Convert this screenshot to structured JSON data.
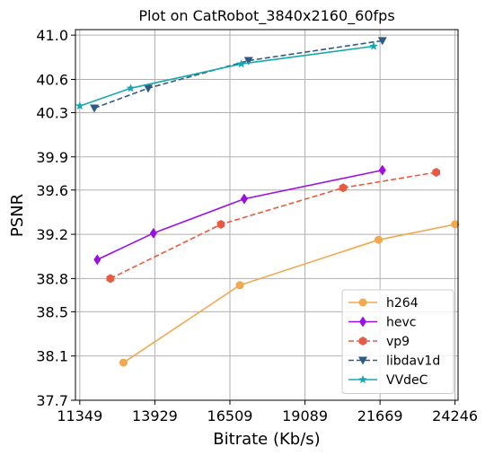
{
  "chart_data": {
    "type": "line",
    "title": "Plot on CatRobot_3840x2160_60fps",
    "xlabel": "Bitrate (Kb/s)",
    "ylabel": "PSNR",
    "xlim": [
      11200,
      24350
    ],
    "ylim": [
      37.7,
      41.05
    ],
    "xticks": [
      11349,
      13929,
      16509,
      19089,
      21669,
      24246
    ],
    "yticks": [
      37.7,
      38.1,
      38.5,
      38.8,
      39.2,
      39.6,
      39.9,
      40.3,
      40.6,
      41.0
    ],
    "grid": true,
    "legend_position": "lower-right",
    "series": [
      {
        "name": "h264",
        "color": "#F2A84C",
        "marker": "circle",
        "dash": "solid",
        "x": [
          12850,
          16850,
          21620,
          24246
        ],
        "y": [
          38.04,
          38.74,
          39.15,
          39.29
        ]
      },
      {
        "name": "hevc",
        "color": "#9B10E3",
        "marker": "diamond",
        "dash": "solid",
        "x": [
          11950,
          13880,
          17000,
          21750
        ],
        "y": [
          38.97,
          39.21,
          39.52,
          39.78
        ]
      },
      {
        "name": "vp9",
        "color": "#E85A41",
        "marker": "hexagon",
        "dash": "dashed",
        "x": [
          12400,
          16200,
          20400,
          23600
        ],
        "y": [
          38.8,
          39.29,
          39.62,
          39.76
        ]
      },
      {
        "name": "libdav1d",
        "color": "#2E5A84",
        "marker": "triangle-down",
        "dash": "dashed",
        "x": [
          11850,
          13700,
          17150,
          21750
        ],
        "y": [
          40.34,
          40.52,
          40.77,
          40.95
        ]
      },
      {
        "name": "VVdeC",
        "color": "#17A8AE",
        "marker": "star",
        "dash": "solid",
        "x": [
          11350,
          13100,
          16900,
          21450
        ],
        "y": [
          40.36,
          40.52,
          40.74,
          40.9
        ]
      }
    ]
  }
}
